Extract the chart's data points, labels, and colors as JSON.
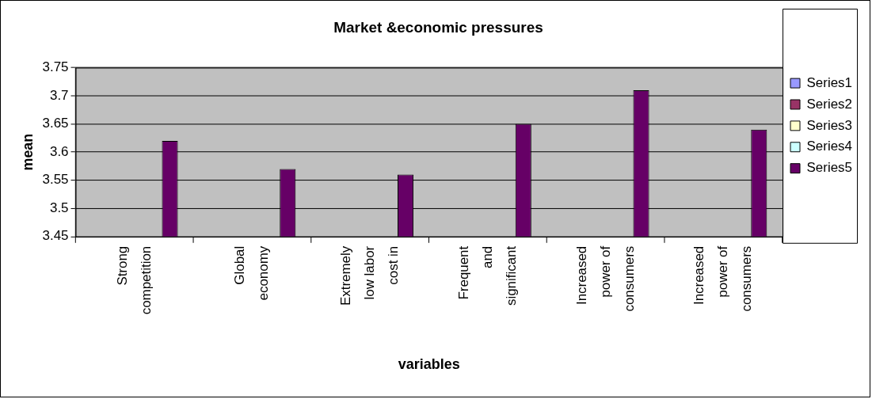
{
  "chart_data": {
    "type": "bar",
    "title": "Market &economic pressures",
    "xlabel": "variables",
    "ylabel": "mean",
    "categories": [
      "Strong competition",
      "Global economy",
      "Extremely low labor cost in",
      "Frequent and significant",
      "Increased power of consumers",
      "Increased power of consumers"
    ],
    "series": [
      {
        "name": "Series1",
        "color": "#9999ff",
        "values": [
          null,
          null,
          null,
          null,
          null,
          null
        ]
      },
      {
        "name": "Series2",
        "color": "#993366",
        "values": [
          null,
          null,
          null,
          null,
          null,
          null
        ]
      },
      {
        "name": "Series3",
        "color": "#ffffcc",
        "values": [
          null,
          null,
          null,
          null,
          null,
          null
        ]
      },
      {
        "name": "Series4",
        "color": "#ccffff",
        "values": [
          null,
          null,
          null,
          null,
          null,
          null
        ]
      },
      {
        "name": "Series5",
        "color": "#660066",
        "values": [
          3.62,
          3.57,
          3.56,
          3.65,
          3.71,
          3.64
        ]
      }
    ],
    "ylim": [
      3.45,
      3.75
    ],
    "yticks": [
      3.45,
      3.5,
      3.55,
      3.6,
      3.65,
      3.7,
      3.75
    ],
    "grid": "y",
    "legend": "right"
  }
}
